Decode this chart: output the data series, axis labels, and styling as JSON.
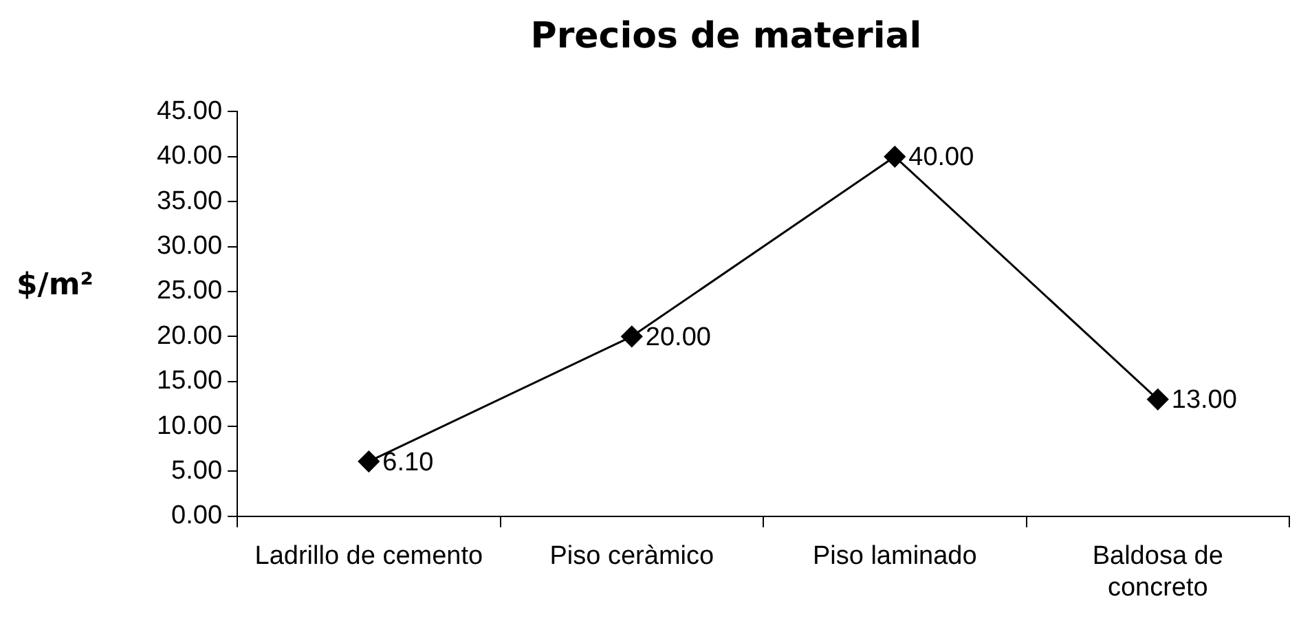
{
  "chart_data": {
    "type": "line",
    "title": "Precios de material",
    "ylabel": "$/m²",
    "categories": [
      "Ladrillo de cemento",
      "Piso ceràmico",
      "Piso laminado",
      "Baldosa de concreto"
    ],
    "values": [
      6.1,
      20,
      40,
      13
    ],
    "value_labels": [
      "6.10",
      "20.00",
      "40.00",
      "13.00"
    ],
    "color": "#000000",
    "ylim": [
      0,
      45
    ],
    "yticks": [
      {
        "value": 0,
        "label": "0.00"
      },
      {
        "value": 5,
        "label": "5.00"
      },
      {
        "value": 10,
        "label": "10.00"
      },
      {
        "value": 15,
        "label": "15.00"
      },
      {
        "value": 20,
        "label": "20.00"
      },
      {
        "value": 25,
        "label": "25.00"
      },
      {
        "value": 30,
        "label": "30.00"
      },
      {
        "value": 35,
        "label": "35.00"
      },
      {
        "value": 40,
        "label": "40.00"
      },
      {
        "value": 45,
        "label": "45.00"
      }
    ],
    "grid": false,
    "legend": false,
    "marker": "diamond",
    "line_style": "solid"
  }
}
